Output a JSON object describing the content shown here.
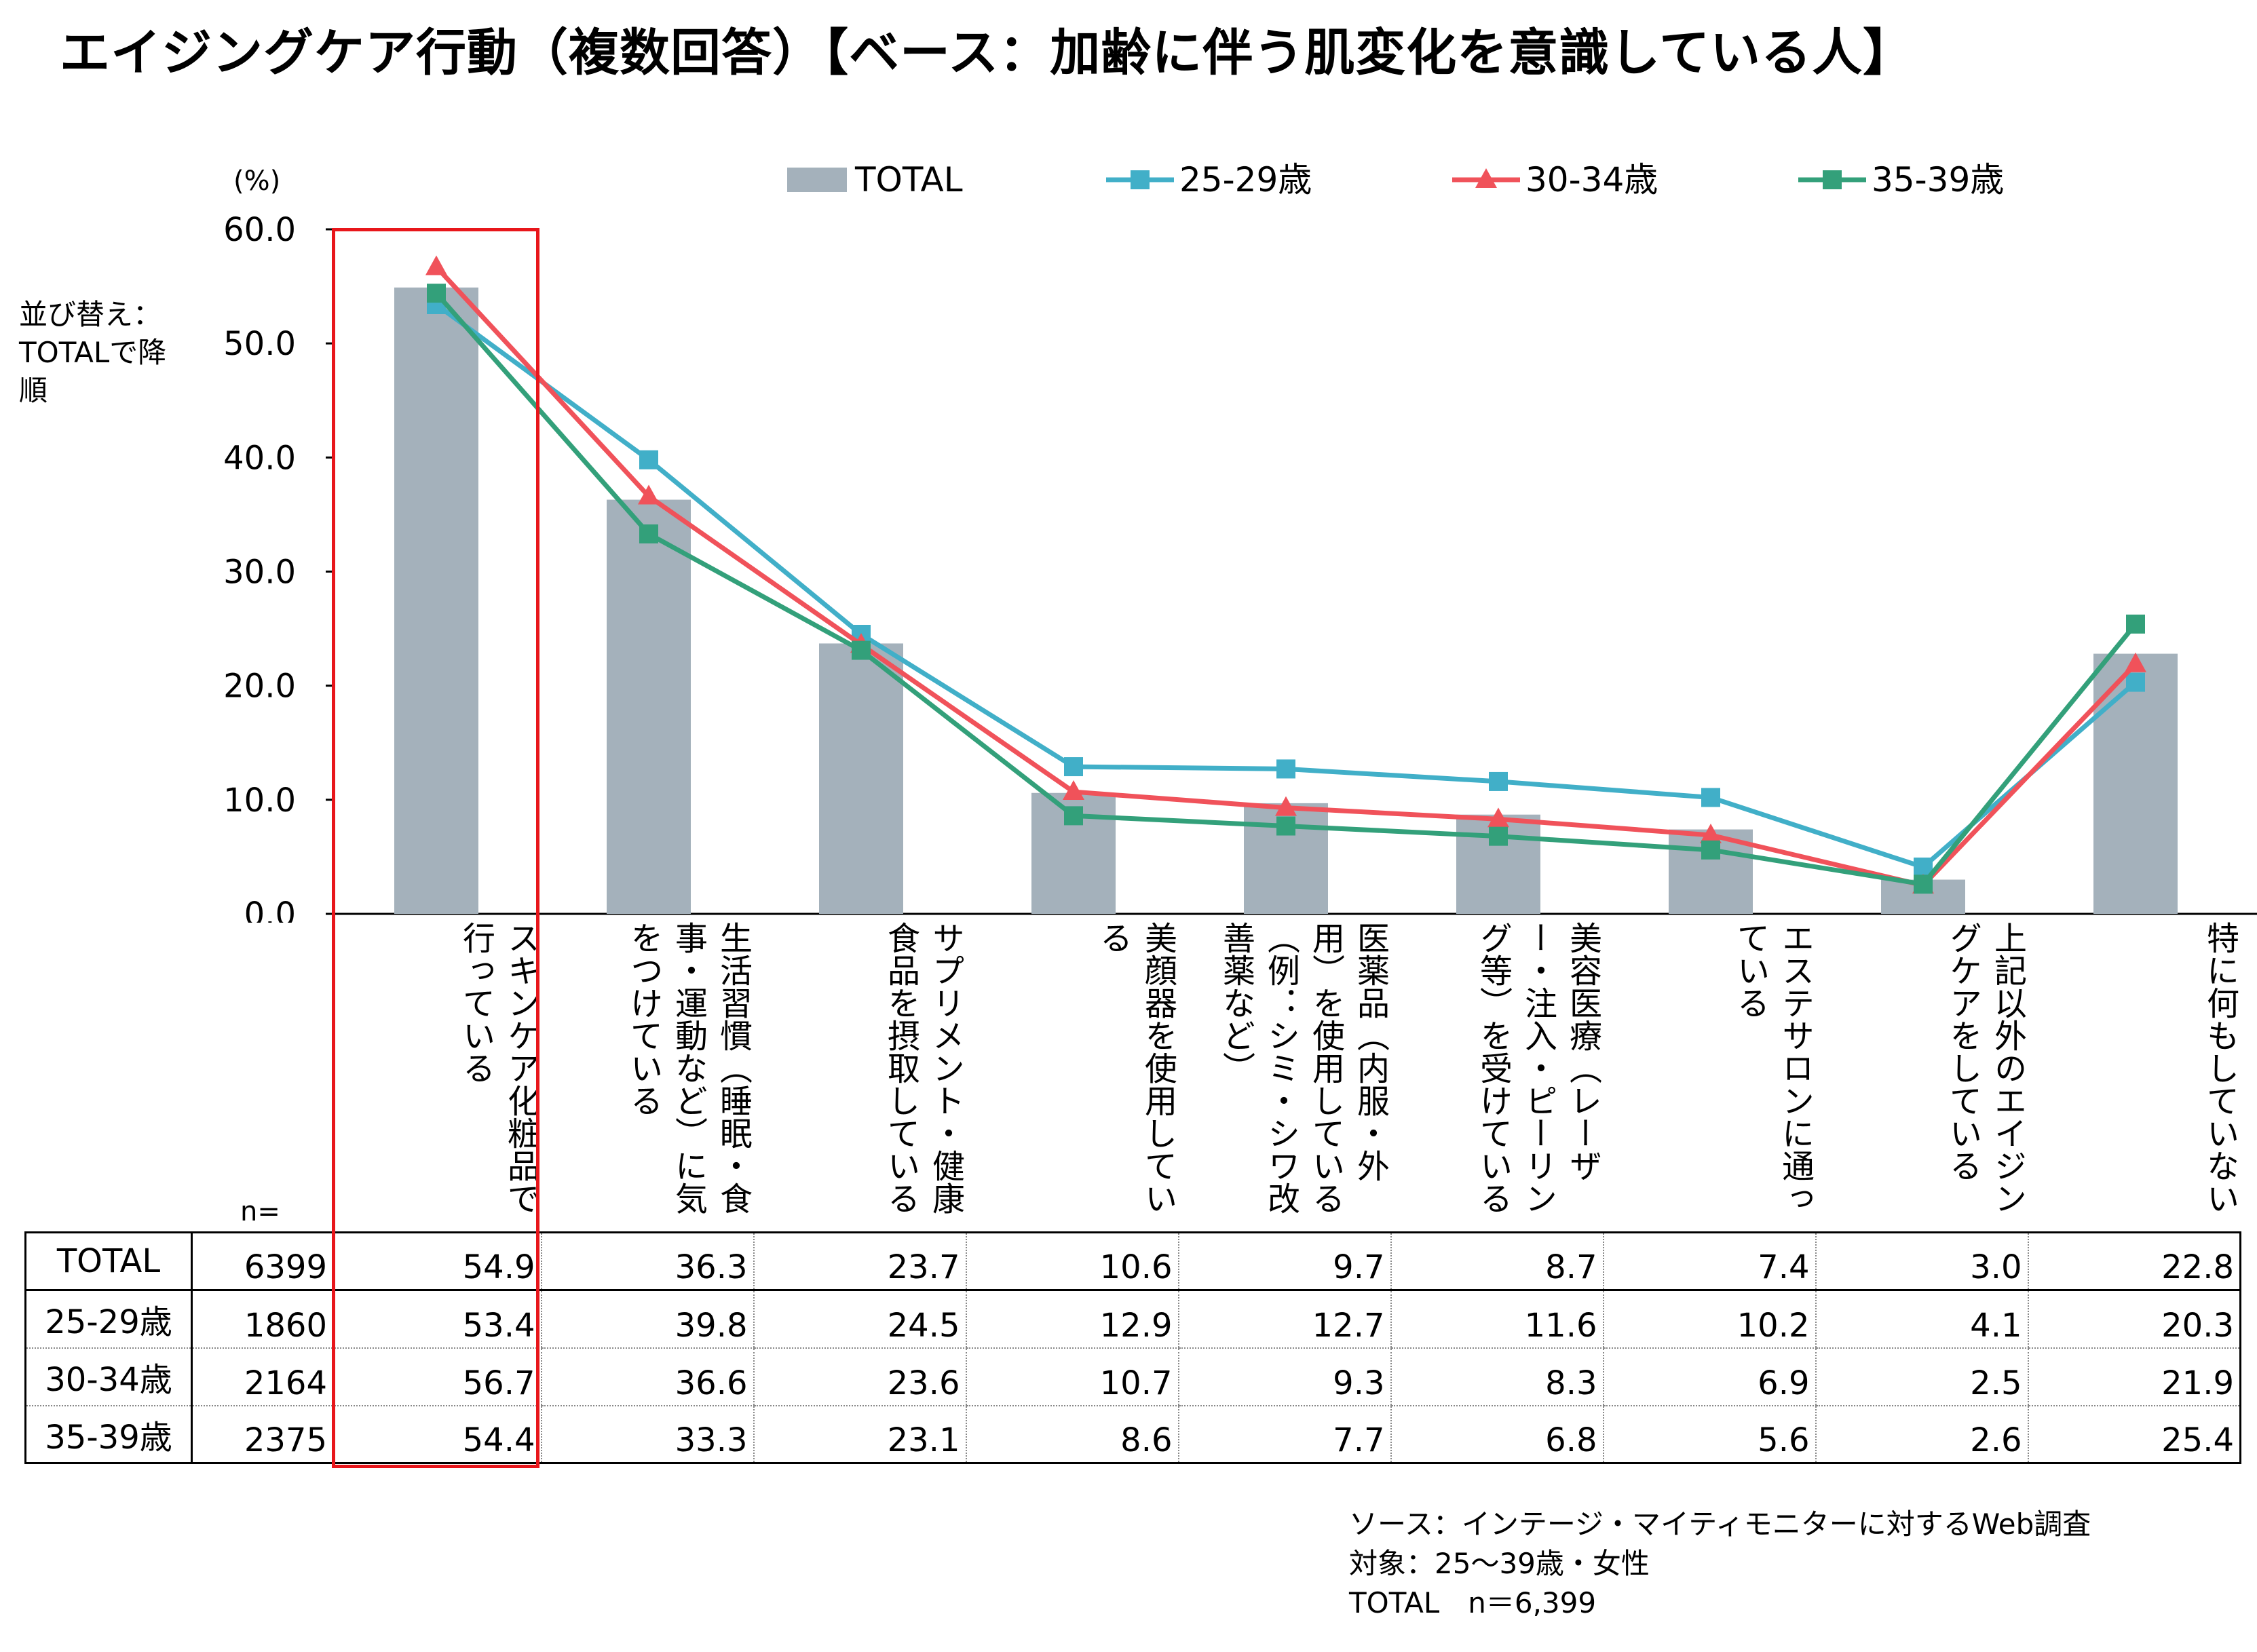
{
  "title": "エイジングケア行動（複数回答）【ベース：加齢に伴う肌変化を意識している人】",
  "sort_note": "並び替え：TOTALで降順",
  "unit_label": "(%)",
  "n_label": "n=",
  "colors": {
    "total": "#a4b1bb",
    "s2529": "#41afc8",
    "s3034": "#f0525a",
    "s3539": "#33a07a",
    "highlight": "#e8161b"
  },
  "source": [
    "ソース：インテージ・マイティモニターに対するWeb調査",
    "対象：25〜39歳・女性",
    "TOTAL　n＝6,399"
  ],
  "chart_data": {
    "type": "bar",
    "ylabel": "(%)",
    "ylim": [
      0,
      60
    ],
    "yticks": [
      "0.0",
      "10.0",
      "20.0",
      "30.0",
      "40.0",
      "50.0",
      "60.0"
    ],
    "grid": false,
    "legend_position": "top",
    "categories": [
      "スキンケア化粧品で行っている",
      "生活習慣（睡眠・食事・運動など）に気をつけている",
      "サプリメント・健康食品を摂取している",
      "美顔器を使用している",
      "医薬品（内服・外用）を使用している（例：シミ・シワ改善薬など）",
      "美容医療（レーザー・注入・ピーリング等）を受けている",
      "エステサロンに通っている",
      "上記以外のエイジングケアをしている",
      "特に何もしていない"
    ],
    "series": [
      {
        "name": "TOTAL",
        "kind": "bar",
        "n": "6399",
        "values": [
          54.9,
          36.3,
          23.7,
          10.6,
          9.7,
          8.7,
          7.4,
          3.0,
          22.8
        ]
      },
      {
        "name": "25-29歳",
        "kind": "line",
        "marker": "square",
        "n": "1860",
        "values": [
          53.4,
          39.8,
          24.5,
          12.9,
          12.7,
          11.6,
          10.2,
          4.1,
          20.3
        ]
      },
      {
        "name": "30-34歳",
        "kind": "line",
        "marker": "triangle",
        "n": "2164",
        "values": [
          56.7,
          36.6,
          23.6,
          10.7,
          9.3,
          8.3,
          6.9,
          2.5,
          21.9
        ]
      },
      {
        "name": "35-39歳",
        "kind": "line",
        "marker": "square",
        "n": "2375",
        "values": [
          54.4,
          33.3,
          23.1,
          8.6,
          7.7,
          6.8,
          5.6,
          2.6,
          25.4
        ]
      }
    ],
    "table": {
      "rows": [
        {
          "label": "TOTAL",
          "n": "6399",
          "values": [
            "54.9",
            "36.3",
            "23.7",
            "10.6",
            "9.7",
            "8.7",
            "7.4",
            "3.0",
            "22.8"
          ]
        },
        {
          "label": "25-29歳",
          "n": "1860",
          "values": [
            "53.4",
            "39.8",
            "24.5",
            "12.9",
            "12.7",
            "11.6",
            "10.2",
            "4.1",
            "20.3"
          ]
        },
        {
          "label": "30-34歳",
          "n": "2164",
          "values": [
            "56.7",
            "36.6",
            "23.6",
            "10.7",
            "9.3",
            "8.3",
            "6.9",
            "2.5",
            "21.9"
          ]
        },
        {
          "label": "35-39歳",
          "n": "2375",
          "values": [
            "54.4",
            "33.3",
            "23.1",
            "8.6",
            "7.7",
            "6.8",
            "5.6",
            "2.6",
            "25.4"
          ]
        }
      ]
    }
  }
}
